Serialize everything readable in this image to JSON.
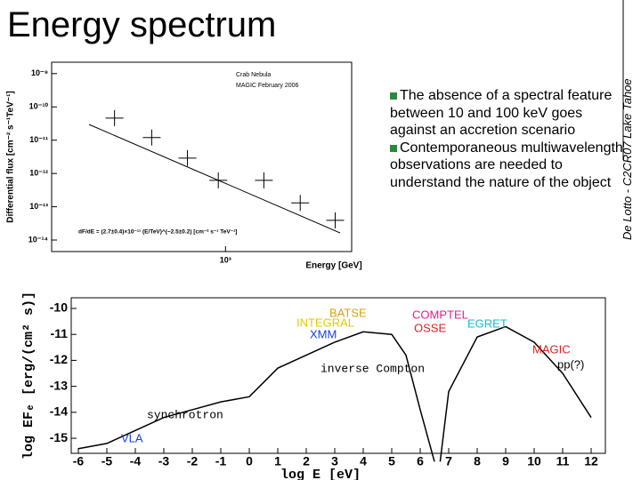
{
  "title": "Energy spectrum",
  "side_note": "De Lotto - C2CR07 Lake Tahoe",
  "bullets": [
    "The absence of a spectral feature between 10 and 100 keV goes against an accretion scenario",
    "Contemporaneous multiwavelength observations are needed to understand the nature of the object"
  ],
  "chart_data": [
    {
      "type": "scatter",
      "x_label": "Energy [GeV]",
      "y_label": "Differential flux [cm⁻² s⁻¹TeV⁻¹]",
      "log_x": true,
      "log_y": true,
      "color": "#000000",
      "legend": [
        "Crab Nebula",
        "MAGIC February 2006"
      ],
      "legend_position": "upper right",
      "annotation": "dF/dE = (2.7±0.4)×10⁻¹¹ (E/TeV)^(−2.5±0.2) [cm⁻² s⁻¹ TeV⁻¹]",
      "x": [
        166,
        303,
        540,
        890,
        1860,
        3350,
        5900
      ],
      "values": [
        4.6e-11,
        1.2e-11,
        2.9e-12,
        6.2e-13,
        6.2e-13,
        1.3e-13,
        3.9e-14
      ],
      "xlim": [
        60,
        7700
      ],
      "ylim": [
        4.5e-15,
        2.2e-09
      ],
      "xticks": [
        {
          "value": 1000,
          "label": "10³"
        }
      ],
      "yticks": [
        {
          "value": 1e-09,
          "label": "10⁻⁹"
        },
        {
          "value": 1e-10,
          "label": "10⁻¹⁰"
        },
        {
          "value": 1e-11,
          "label": "10⁻¹¹"
        },
        {
          "value": 1e-12,
          "label": "10⁻¹²"
        },
        {
          "value": 1e-13,
          "label": "10⁻¹³"
        },
        {
          "value": 1e-14,
          "label": "10⁻¹⁴"
        }
      ]
    },
    {
      "type": "line",
      "x_label": "log E [eV]",
      "y_label": "log EFₑ [erg/(cm² s)]",
      "series": [
        {
          "name": "synchrotron",
          "color": "#000000",
          "x": [
            -6,
            -5,
            -4,
            -3,
            -2,
            -1,
            0,
            1,
            2,
            3,
            4,
            5,
            5.5,
            6,
            6.5
          ],
          "values": [
            -15.4,
            -15.2,
            -14.7,
            -14.2,
            -13.9,
            -13.6,
            -13.4,
            -12.3,
            -11.8,
            -11.3,
            -10.9,
            -11.0,
            -11.8,
            -13.9,
            -15.9
          ]
        },
        {
          "name": "inverse Compton",
          "color": "#000000",
          "x": [
            6.7,
            7,
            8,
            9,
            10,
            11,
            12
          ],
          "values": [
            -15.9,
            -13.2,
            -11.1,
            -10.7,
            -11.3,
            -12.5,
            -14.2
          ]
        }
      ],
      "annotations": [
        {
          "text": "BATSE",
          "color": "#d4a017"
        },
        {
          "text": "INTEGRAL",
          "color": "#e6c800"
        },
        {
          "text": "XMM",
          "color": "#1a3fd6"
        },
        {
          "text": "VLA",
          "color": "#1a3fd6"
        },
        {
          "text": "COMPTEL",
          "color": "#e0208f"
        },
        {
          "text": "OSSE",
          "color": "#e02020"
        },
        {
          "text": "EGRET",
          "color": "#18b8d8"
        },
        {
          "text": "MAGIC",
          "color": "#e02020"
        },
        {
          "text": "pp(?)",
          "color": "#000000"
        }
      ],
      "xlim": [
        -6.25,
        12.5
      ],
      "ylim": [
        -15.58,
        -9.59
      ],
      "xticks": [
        -6,
        -5,
        -4,
        -3,
        -2,
        -1,
        0,
        1,
        2,
        3,
        4,
        5,
        6,
        7,
        8,
        9,
        10,
        11,
        12
      ],
      "yticks": [
        -10,
        -11,
        -12,
        -13,
        -14,
        -15
      ]
    }
  ]
}
